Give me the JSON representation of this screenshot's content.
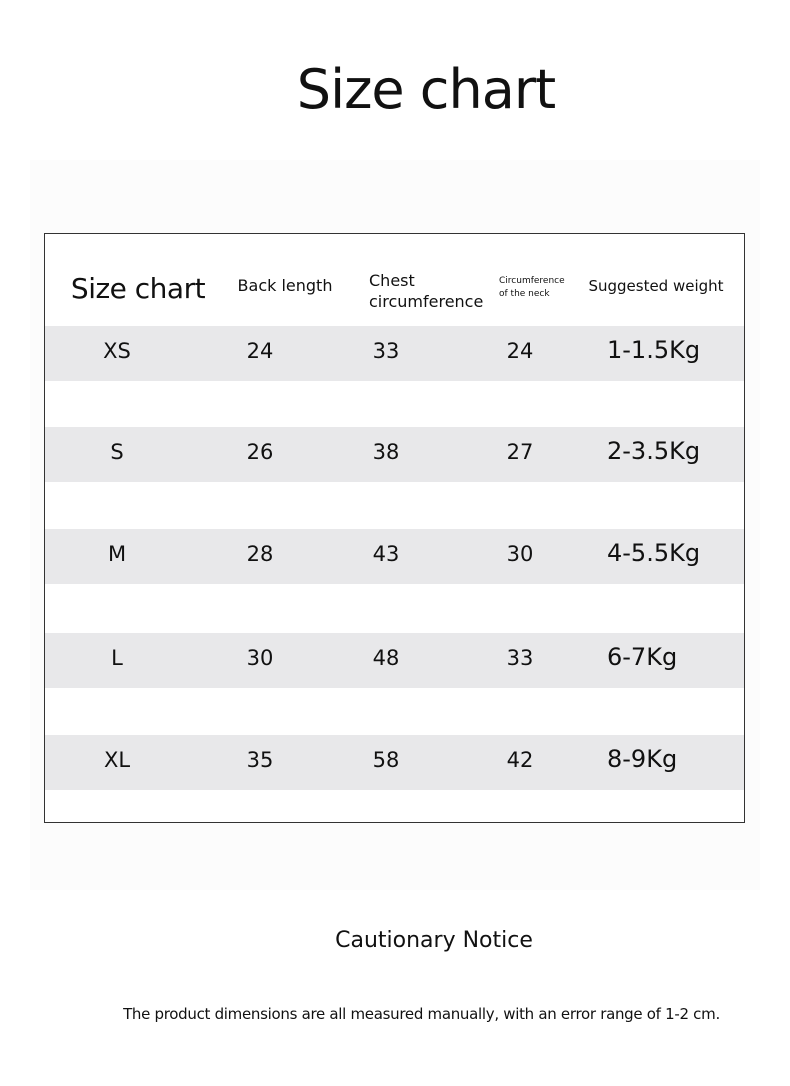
{
  "title": "Size chart",
  "table": {
    "headers": [
      "Size chart",
      "Back length",
      "Chest circumference",
      "Circumference of the neck",
      "Suggested weight"
    ],
    "rows": [
      [
        "XS",
        "24",
        "33",
        "24",
        "1-1.5Kg"
      ],
      [
        "S",
        "26",
        "38",
        "27",
        "2-3.5Kg"
      ],
      [
        "M",
        "28",
        "43",
        "30",
        "4-5.5Kg"
      ],
      [
        "L",
        "30",
        "48",
        "33",
        "6-7Kg"
      ],
      [
        "XL",
        "35",
        "58",
        "42",
        "8-9Kg"
      ]
    ]
  },
  "notice_title": "Cautionary Notice",
  "notice_text": "The product dimensions are all measured manually, with an error range of 1-2 cm.",
  "colors": {
    "row_band": "#e8e8ea",
    "border": "#333333"
  }
}
